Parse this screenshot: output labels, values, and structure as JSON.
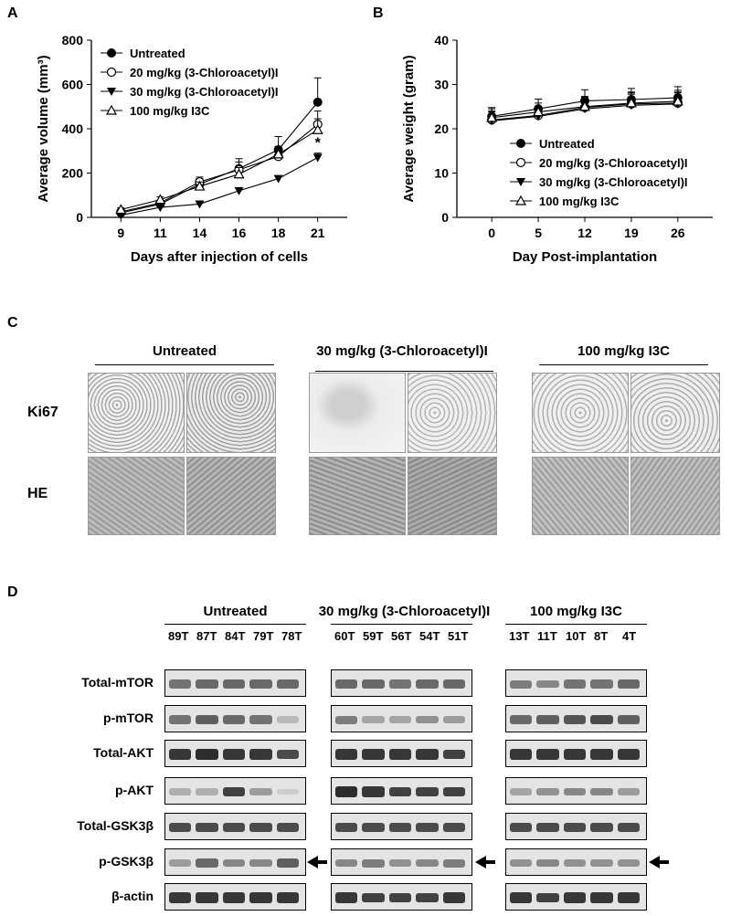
{
  "panel_labels": {
    "a": "A",
    "b": "B",
    "c": "C",
    "d": "D"
  },
  "chart_data": [
    {
      "type": "line",
      "id": "A",
      "xlabel": "Days after injection of cells",
      "ylabel": "Average volume (mm³)",
      "x": [
        9,
        11,
        14,
        16,
        18,
        21
      ],
      "ylim": [
        0,
        800
      ],
      "yticks": [
        0,
        200,
        400,
        600,
        800
      ],
      "legend_position": "top-left",
      "annotation": "*",
      "series": [
        {
          "name": "Untreated",
          "marker": "filled-circle",
          "values": [
            20,
            60,
            150,
            220,
            305,
            520
          ],
          "err": [
            8,
            12,
            25,
            45,
            60,
            110
          ]
        },
        {
          "name": "20 mg/kg (3-Chloroacetyl)I",
          "marker": "open-circle",
          "values": [
            25,
            65,
            160,
            215,
            275,
            420
          ],
          "err": [
            8,
            10,
            22,
            35,
            40,
            60
          ]
        },
        {
          "name": "30 mg/kg (3-Chloroacetyl)I",
          "marker": "filled-triangle-down",
          "values": [
            10,
            45,
            60,
            120,
            175,
            270
          ],
          "err": [
            4,
            6,
            8,
            12,
            12,
            20
          ]
        },
        {
          "name": "100 mg/kg I3C",
          "marker": "open-triangle-up",
          "values": [
            35,
            80,
            140,
            195,
            285,
            395
          ],
          "err": [
            8,
            12,
            20,
            30,
            35,
            50
          ]
        }
      ]
    },
    {
      "type": "line",
      "id": "B",
      "xlabel": "Day Post-implantation",
      "ylabel": "Average weight (gram)",
      "x": [
        0,
        5,
        12,
        19,
        26
      ],
      "ylim": [
        0,
        40
      ],
      "yticks": [
        0,
        10,
        20,
        30,
        40
      ],
      "legend_position": "bottom-left",
      "series": [
        {
          "name": "Untreated",
          "marker": "filled-circle",
          "values": [
            22.8,
            24.5,
            26.3,
            26.6,
            27.0
          ],
          "err": [
            2,
            2.2,
            2.5,
            2.5,
            2.5
          ]
        },
        {
          "name": "20 mg/kg (3-Chloroacetyl)I",
          "marker": "open-circle",
          "values": [
            22.0,
            23.0,
            24.8,
            25.6,
            25.8
          ],
          "err": [
            2,
            2,
            2.3,
            2.5,
            2.5
          ]
        },
        {
          "name": "30 mg/kg (3-Chloroacetyl)I",
          "marker": "filled-triangle-down",
          "values": [
            21.8,
            22.8,
            24.5,
            25.3,
            25.6
          ],
          "err": [
            2,
            2,
            2.3,
            2.5,
            2.5
          ]
        },
        {
          "name": "100 mg/kg I3C",
          "marker": "open-triangle-up",
          "values": [
            22.5,
            23.8,
            25.0,
            25.8,
            26.2
          ],
          "err": [
            2,
            2,
            2.3,
            2.5,
            2.5
          ]
        }
      ]
    }
  ],
  "panel_c": {
    "groups": [
      "Untreated",
      "30 mg/kg (3-Chloroacetyl)I",
      "100 mg/kg I3C"
    ],
    "rows": [
      "Ki67",
      "HE"
    ]
  },
  "panel_d": {
    "groups": [
      "Untreated",
      "30 mg/kg (3-Chloroacetyl)I",
      "100 mg/kg I3C"
    ],
    "lanes": [
      [
        "89T",
        "87T",
        "84T",
        "79T",
        "78T"
      ],
      [
        "60T",
        "59T",
        "56T",
        "54T",
        "51T"
      ],
      [
        "13T",
        "11T",
        "10T",
        "8T",
        "4T"
      ]
    ],
    "rows": [
      "Total-mTOR",
      "p-mTOR",
      "Total-AKT",
      "p-AKT",
      "Total-GSK3β",
      "p-GSK3β",
      "β-actin"
    ],
    "band_intensity": [
      [
        [
          0.55,
          0.6,
          0.6,
          0.6,
          0.6
        ],
        [
          0.6,
          0.6,
          0.55,
          0.6,
          0.6
        ],
        [
          0.5,
          0.45,
          0.55,
          0.55,
          0.6
        ]
      ],
      [
        [
          0.55,
          0.65,
          0.6,
          0.55,
          0.2
        ],
        [
          0.5,
          0.3,
          0.3,
          0.4,
          0.35
        ],
        [
          0.6,
          0.65,
          0.7,
          0.75,
          0.65
        ]
      ],
      [
        [
          0.85,
          0.9,
          0.85,
          0.85,
          0.75
        ],
        [
          0.85,
          0.85,
          0.85,
          0.85,
          0.8
        ],
        [
          0.85,
          0.85,
          0.85,
          0.85,
          0.85
        ]
      ],
      [
        [
          0.25,
          0.25,
          0.8,
          0.35,
          0.1
        ],
        [
          0.9,
          0.85,
          0.8,
          0.8,
          0.8
        ],
        [
          0.3,
          0.4,
          0.45,
          0.45,
          0.35
        ]
      ],
      [
        [
          0.75,
          0.75,
          0.75,
          0.75,
          0.75
        ],
        [
          0.75,
          0.75,
          0.75,
          0.75,
          0.75
        ],
        [
          0.75,
          0.75,
          0.75,
          0.75,
          0.75
        ]
      ],
      [
        [
          0.35,
          0.6,
          0.45,
          0.45,
          0.65
        ],
        [
          0.45,
          0.5,
          0.4,
          0.45,
          0.5
        ],
        [
          0.4,
          0.45,
          0.4,
          0.4,
          0.4
        ]
      ],
      [
        [
          0.85,
          0.85,
          0.85,
          0.85,
          0.85
        ],
        [
          0.85,
          0.8,
          0.8,
          0.8,
          0.85
        ],
        [
          0.85,
          0.8,
          0.85,
          0.85,
          0.85
        ]
      ]
    ],
    "marked_row": "p-GSK3β"
  }
}
